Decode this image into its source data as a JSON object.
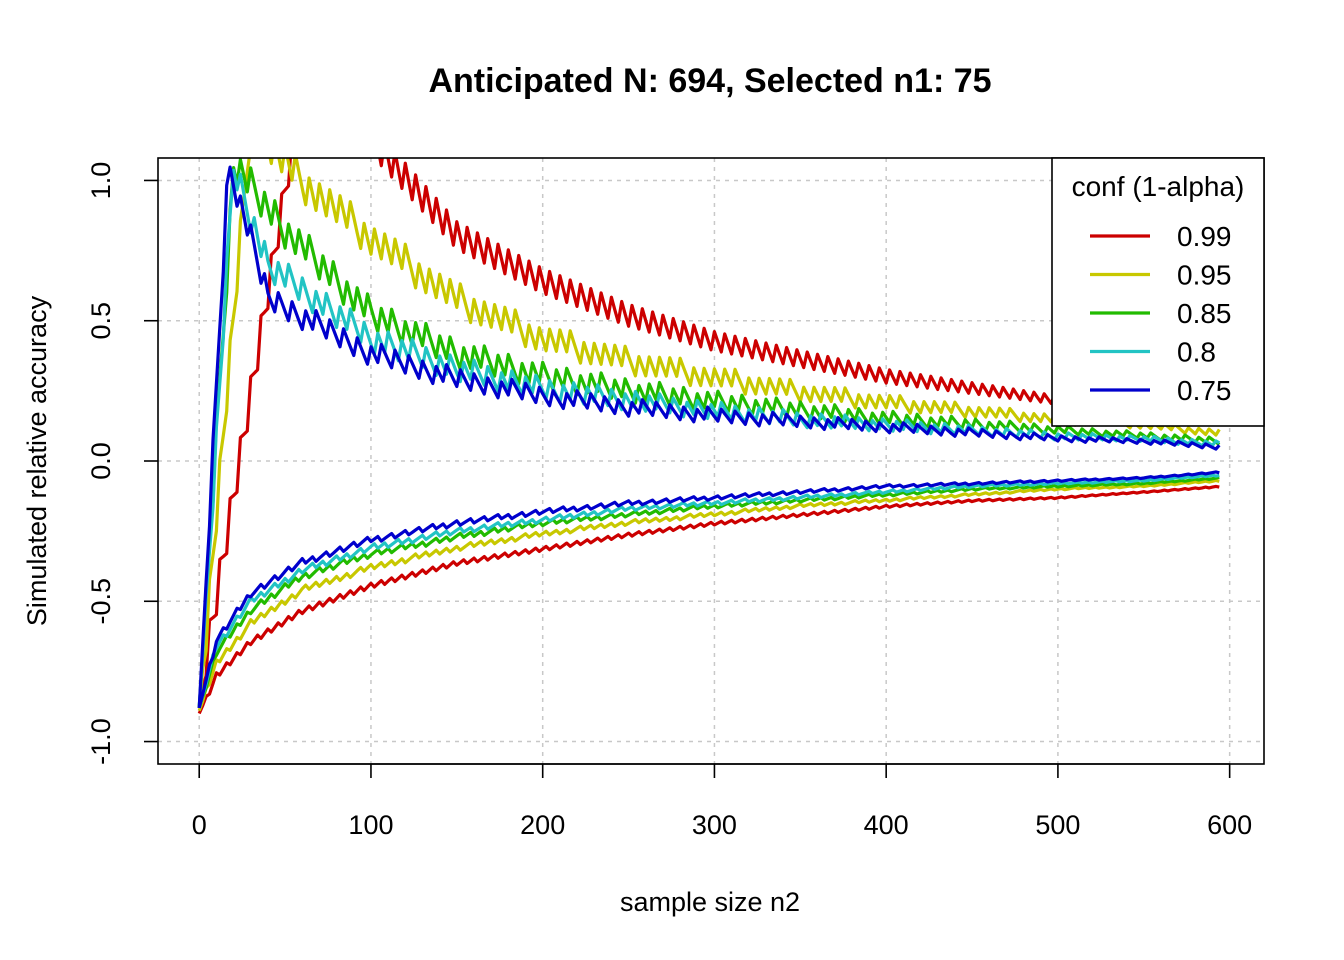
{
  "chart_data": {
    "type": "line",
    "title": "Anticipated N: 694, Selected n1: 75",
    "xlabel": "sample size n2",
    "ylabel": "Simulated relative accuracy",
    "xlim": [
      -24,
      620
    ],
    "ylim": [
      -1.08,
      1.08
    ],
    "x_ticks": [
      0,
      100,
      200,
      300,
      400,
      500,
      600
    ],
    "y_ticks": [
      -1.0,
      -0.5,
      0.0,
      0.5,
      1.0
    ],
    "y_tick_labels": [
      "-1.0",
      "-0.5",
      "0.0",
      "0.5",
      "1.0"
    ],
    "grid": true,
    "legend": {
      "title": "conf (1-alpha)",
      "position": "top-right"
    },
    "n_max": 595,
    "series": [
      {
        "name": "0.99",
        "color": "#cc0000",
        "upper": [
          [
            0,
            -0.88
          ],
          [
            60,
            1.3
          ],
          [
            100,
            1.12
          ],
          [
            150,
            0.78
          ],
          [
            200,
            0.62
          ],
          [
            250,
            0.5
          ],
          [
            300,
            0.41
          ],
          [
            350,
            0.35
          ],
          [
            400,
            0.29
          ],
          [
            450,
            0.25
          ],
          [
            500,
            0.21
          ],
          [
            550,
            0.18
          ],
          [
            595,
            0.15
          ]
        ],
        "lower": [
          [
            0,
            -0.9
          ],
          [
            10,
            -0.76
          ],
          [
            30,
            -0.64
          ],
          [
            60,
            -0.53
          ],
          [
            100,
            -0.44
          ],
          [
            150,
            -0.36
          ],
          [
            200,
            -0.31
          ],
          [
            250,
            -0.26
          ],
          [
            300,
            -0.22
          ],
          [
            350,
            -0.19
          ],
          [
            400,
            -0.16
          ],
          [
            450,
            -0.14
          ],
          [
            500,
            -0.13
          ],
          [
            550,
            -0.11
          ],
          [
            595,
            -0.09
          ]
        ]
      },
      {
        "name": "0.95",
        "color": "#c8c800",
        "upper": [
          [
            0,
            -0.88
          ],
          [
            30,
            1.2
          ],
          [
            60,
            1.0
          ],
          [
            100,
            0.8
          ],
          [
            150,
            0.58
          ],
          [
            200,
            0.44
          ],
          [
            250,
            0.36
          ],
          [
            300,
            0.3
          ],
          [
            350,
            0.25
          ],
          [
            400,
            0.21
          ],
          [
            450,
            0.18
          ],
          [
            500,
            0.15
          ],
          [
            550,
            0.13
          ],
          [
            595,
            0.1
          ]
        ],
        "lower": [
          [
            0,
            -0.89
          ],
          [
            10,
            -0.72
          ],
          [
            30,
            -0.58
          ],
          [
            60,
            -0.46
          ],
          [
            100,
            -0.38
          ],
          [
            150,
            -0.31
          ],
          [
            200,
            -0.26
          ],
          [
            250,
            -0.22
          ],
          [
            300,
            -0.19
          ],
          [
            350,
            -0.16
          ],
          [
            400,
            -0.14
          ],
          [
            450,
            -0.12
          ],
          [
            500,
            -0.1
          ],
          [
            550,
            -0.09
          ],
          [
            595,
            -0.07
          ]
        ]
      },
      {
        "name": "0.85",
        "color": "#22bb00",
        "upper": [
          [
            0,
            -0.88
          ],
          [
            20,
            1.05
          ],
          [
            50,
            0.82
          ],
          [
            100,
            0.52
          ],
          [
            150,
            0.38
          ],
          [
            200,
            0.3
          ],
          [
            250,
            0.25
          ],
          [
            300,
            0.21
          ],
          [
            350,
            0.18
          ],
          [
            400,
            0.15
          ],
          [
            450,
            0.13
          ],
          [
            500,
            0.11
          ],
          [
            550,
            0.09
          ],
          [
            595,
            0.07
          ]
        ],
        "lower": [
          [
            0,
            -0.88
          ],
          [
            10,
            -0.68
          ],
          [
            30,
            -0.53
          ],
          [
            60,
            -0.41
          ],
          [
            100,
            -0.33
          ],
          [
            150,
            -0.27
          ],
          [
            200,
            -0.22
          ],
          [
            250,
            -0.19
          ],
          [
            300,
            -0.16
          ],
          [
            350,
            -0.14
          ],
          [
            400,
            -0.12
          ],
          [
            450,
            -0.1
          ],
          [
            500,
            -0.09
          ],
          [
            550,
            -0.08
          ],
          [
            595,
            -0.06
          ]
        ]
      },
      {
        "name": "0.8",
        "color": "#22c4c4",
        "upper": [
          [
            0,
            -0.88
          ],
          [
            20,
            1.05
          ],
          [
            40,
            0.7
          ],
          [
            100,
            0.44
          ],
          [
            150,
            0.33
          ],
          [
            200,
            0.26
          ],
          [
            250,
            0.22
          ],
          [
            300,
            0.18
          ],
          [
            350,
            0.15
          ],
          [
            400,
            0.13
          ],
          [
            450,
            0.11
          ],
          [
            500,
            0.09
          ],
          [
            550,
            0.08
          ],
          [
            595,
            0.06
          ]
        ],
        "lower": [
          [
            0,
            -0.88
          ],
          [
            10,
            -0.66
          ],
          [
            30,
            -0.5
          ],
          [
            60,
            -0.39
          ],
          [
            100,
            -0.31
          ],
          [
            150,
            -0.25
          ],
          [
            200,
            -0.21
          ],
          [
            250,
            -0.17
          ],
          [
            300,
            -0.15
          ],
          [
            350,
            -0.13
          ],
          [
            400,
            -0.11
          ],
          [
            450,
            -0.09
          ],
          [
            500,
            -0.08
          ],
          [
            550,
            -0.07
          ],
          [
            595,
            -0.05
          ]
        ]
      },
      {
        "name": "0.75",
        "color": "#0000cc",
        "upper": [
          [
            0,
            -0.88
          ],
          [
            17,
            1.06
          ],
          [
            40,
            0.58
          ],
          [
            100,
            0.38
          ],
          [
            150,
            0.29
          ],
          [
            200,
            0.23
          ],
          [
            250,
            0.19
          ],
          [
            300,
            0.16
          ],
          [
            350,
            0.14
          ],
          [
            400,
            0.12
          ],
          [
            450,
            0.1
          ],
          [
            500,
            0.08
          ],
          [
            550,
            0.07
          ],
          [
            595,
            0.05
          ]
        ],
        "lower": [
          [
            0,
            -0.88
          ],
          [
            10,
            -0.64
          ],
          [
            30,
            -0.47
          ],
          [
            60,
            -0.36
          ],
          [
            100,
            -0.28
          ],
          [
            150,
            -0.22
          ],
          [
            200,
            -0.18
          ],
          [
            250,
            -0.15
          ],
          [
            300,
            -0.13
          ],
          [
            350,
            -0.11
          ],
          [
            400,
            -0.09
          ],
          [
            450,
            -0.08
          ],
          [
            500,
            -0.07
          ],
          [
            550,
            -0.06
          ],
          [
            595,
            -0.04
          ]
        ]
      }
    ]
  }
}
